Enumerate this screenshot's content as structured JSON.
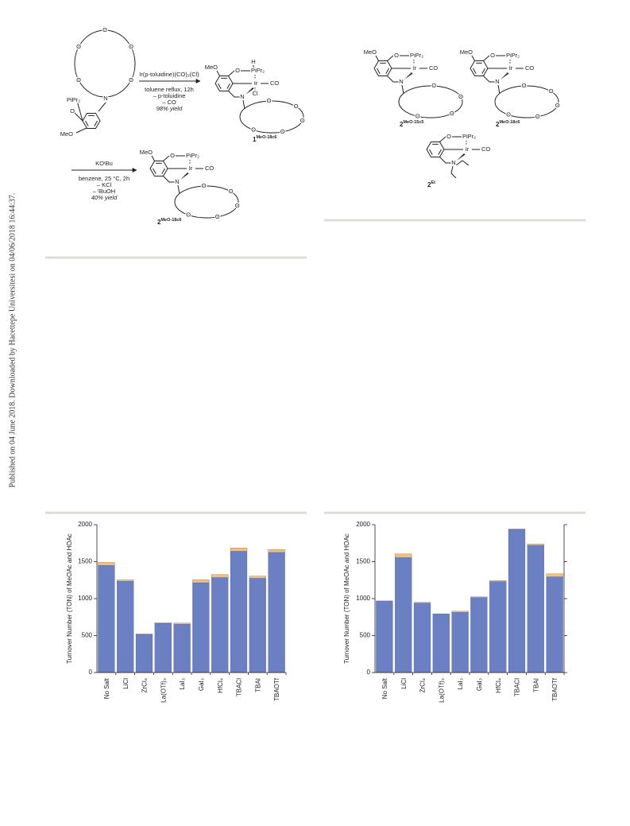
{
  "side_note": "Published on 04 June 2018. Downloaded by Hacettepe Universitesi on 04/06/2018 16:44:37.",
  "scheme_left": {
    "reactant": {
      "crown": [
        "O",
        "O",
        "O",
        "O",
        "O"
      ],
      "amine": "N",
      "phosphine": "PiPr₂",
      "ether_o": "O",
      "methoxy": "MeO"
    },
    "step_1": {
      "reagent": "Ir(p-toluidine)(CO)₂(Cl)",
      "conditions": [
        "toluene reflux, 12h",
        "– p-toluidine",
        "– CO"
      ],
      "yield": "98% yield"
    },
    "product_1": {
      "methoxy": "MeO",
      "ether_o": "O",
      "phosphine": "PiPr₂",
      "hydride": "H",
      "metal": "Ir",
      "carbonyl": "CO",
      "amine": "N",
      "chloride": "Cl",
      "crown": [
        "O",
        "O",
        "O",
        "O",
        "O"
      ],
      "number": "1",
      "superscript": "MeO-18c6"
    },
    "step_2": {
      "reagent": "KOᵗBu",
      "conditions": [
        "benzene, 25 °C, 2h",
        "– KCl",
        "– ᵗBuOH"
      ],
      "yield": "40% yield"
    },
    "product_2": {
      "methoxy": "MeO",
      "ether_o": "O",
      "phosphine": "PiPr₂",
      "metal": "Ir",
      "carbonyl": "CO",
      "amine": "N",
      "crown": [
        "O",
        "O",
        "O",
        "O",
        "O"
      ],
      "number": "2",
      "superscript": "MeO-18c6"
    }
  },
  "scheme_right": {
    "complex_a": {
      "methoxy": "MeO",
      "ether_o": "O",
      "phosphine": "PiPr₂",
      "metal": "Ir",
      "carbonyl": "CO",
      "amine": "N",
      "crown": [
        "O",
        "O",
        "O",
        "O"
      ],
      "number": "2",
      "superscript": "MeO-15c5"
    },
    "complex_b": {
      "methoxy": "MeO",
      "ether_o": "O",
      "phosphine": "PiPr₂",
      "metal": "Ir",
      "carbonyl": "CO",
      "amine": "N",
      "crown": [
        "O",
        "O",
        "O",
        "O",
        "O"
      ],
      "number": "2",
      "superscript": "MeO-18c6"
    },
    "complex_c": {
      "ether_o": "O",
      "phosphine": "PiPr₂",
      "metal": "Ir",
      "carbonyl": "CO",
      "amine": "N",
      "number": "2",
      "superscript": "Et"
    }
  },
  "chart_data": [
    {
      "type": "bar",
      "stacked": true,
      "y_label": "Turnover Number (TON) of MeOAc and HOAc",
      "categories": [
        "No Salt",
        "LiCl",
        "ZrCl₄",
        "La(OTf)₃",
        "LaI₃",
        "GaI₃",
        "HfCl₄",
        "TBACl",
        "TBAI",
        "TBAOTf"
      ],
      "series": [
        {
          "color": "#6b7fc3",
          "values": [
            1450,
            1235,
            515,
            665,
            655,
            1215,
            1285,
            1640,
            1275,
            1625
          ]
        },
        {
          "color": "#f6c06c",
          "values": [
            40,
            20,
            10,
            10,
            15,
            40,
            40,
            45,
            30,
            40
          ]
        }
      ],
      "ylim": [
        0,
        2000
      ],
      "yticks": [
        0,
        500,
        1000,
        1500,
        2000
      ],
      "mirror_ticks": false
    },
    {
      "type": "bar",
      "stacked": true,
      "y_label": "Turnover Number (TON) of MeOAc and HOAc",
      "categories": [
        "No Salt",
        "LiCl",
        "ZrCl₄",
        "La(OTf)₃",
        "LaI₃",
        "GaI₃",
        "HfCl₄",
        "TBACl",
        "TBAI",
        "TBAOTf"
      ],
      "series": [
        {
          "color": "#6b7fc3",
          "values": [
            965,
            1555,
            940,
            790,
            815,
            1015,
            1230,
            1935,
            1720,
            1295
          ]
        },
        {
          "color": "#f6c06c",
          "values": [
            5,
            50,
            10,
            5,
            15,
            10,
            15,
            10,
            20,
            40
          ]
        }
      ],
      "ylim": [
        0,
        2000
      ],
      "yticks": [
        0,
        500,
        1000,
        1500,
        2000
      ],
      "mirror_ticks": true
    }
  ]
}
